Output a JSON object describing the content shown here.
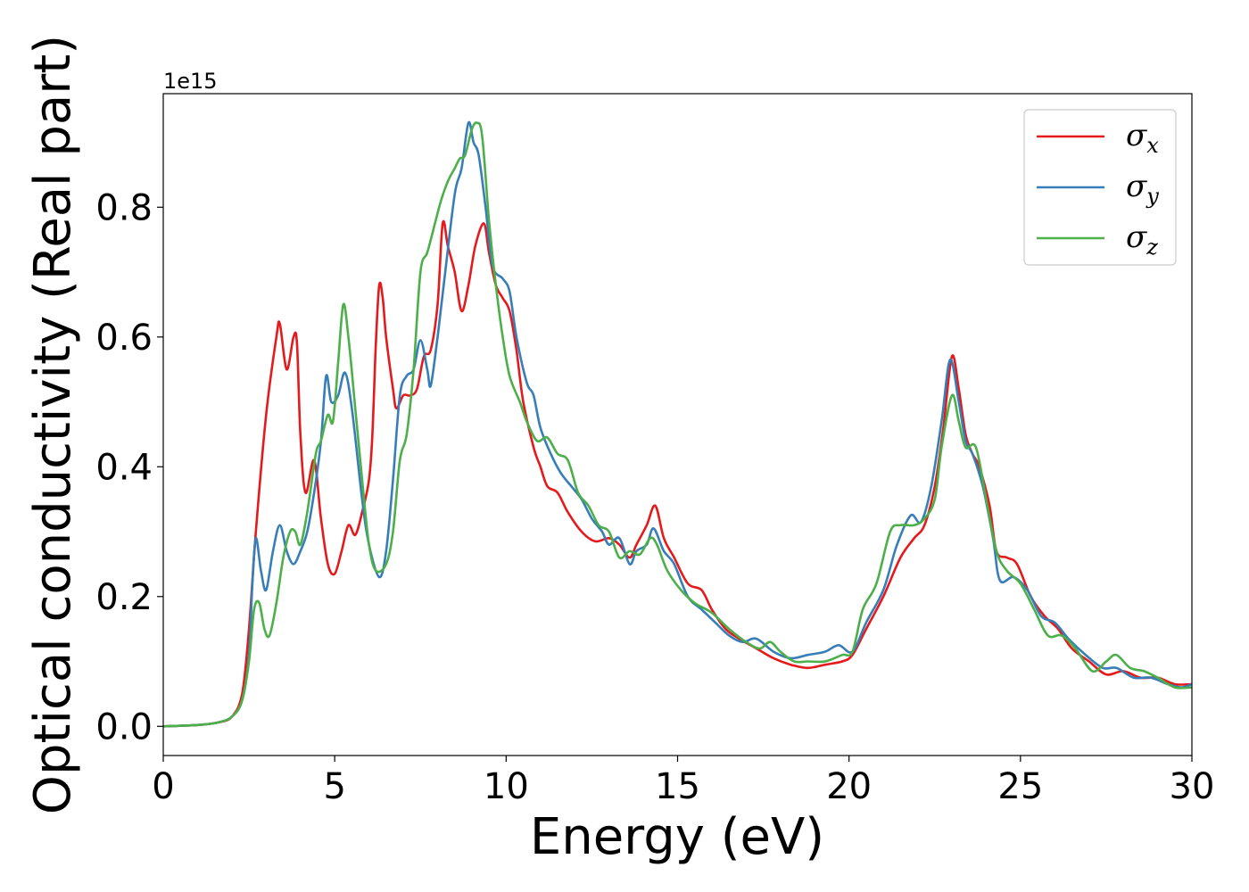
{
  "chart_data": {
    "type": "line",
    "xlabel": "Energy (eV)",
    "ylabel": "Optical conductivity (Real part)",
    "y_offset_text": "1e15",
    "xlim": [
      0,
      30
    ],
    "ylim": [
      -0.045,
      0.975
    ],
    "x_ticks": [
      0,
      5,
      10,
      15,
      20,
      25,
      30
    ],
    "x_tick_labels": [
      "0",
      "5",
      "10",
      "15",
      "20",
      "25",
      "30"
    ],
    "y_ticks": [
      0.0,
      0.2,
      0.4,
      0.6,
      0.8
    ],
    "y_tick_labels": [
      "0.0",
      "0.2",
      "0.4",
      "0.6",
      "0.8"
    ],
    "grid": false,
    "legend_position": "top-right",
    "series": [
      {
        "name": "σx",
        "symbol": "σ",
        "subscript": "x",
        "color": "#e41a1c",
        "points": [
          [
            0,
            0
          ],
          [
            1,
            0.002
          ],
          [
            1.6,
            0.006
          ],
          [
            2,
            0.015
          ],
          [
            2.3,
            0.05
          ],
          [
            2.5,
            0.15
          ],
          [
            2.7,
            0.3
          ],
          [
            3.0,
            0.48
          ],
          [
            3.3,
            0.6
          ],
          [
            3.4,
            0.62
          ],
          [
            3.6,
            0.55
          ],
          [
            3.8,
            0.6
          ],
          [
            3.9,
            0.59
          ],
          [
            4.0,
            0.45
          ],
          [
            4.15,
            0.36
          ],
          [
            4.4,
            0.41
          ],
          [
            4.6,
            0.32
          ],
          [
            4.8,
            0.25
          ],
          [
            5.0,
            0.235
          ],
          [
            5.2,
            0.27
          ],
          [
            5.4,
            0.31
          ],
          [
            5.6,
            0.295
          ],
          [
            5.8,
            0.33
          ],
          [
            6.0,
            0.38
          ],
          [
            6.1,
            0.45
          ],
          [
            6.2,
            0.59
          ],
          [
            6.3,
            0.68
          ],
          [
            6.4,
            0.66
          ],
          [
            6.5,
            0.6
          ],
          [
            6.7,
            0.52
          ],
          [
            6.8,
            0.49
          ],
          [
            7.0,
            0.51
          ],
          [
            7.2,
            0.51
          ],
          [
            7.4,
            0.52
          ],
          [
            7.6,
            0.57
          ],
          [
            7.8,
            0.58
          ],
          [
            8.0,
            0.65
          ],
          [
            8.15,
            0.775
          ],
          [
            8.3,
            0.74
          ],
          [
            8.5,
            0.7
          ],
          [
            8.7,
            0.64
          ],
          [
            8.9,
            0.68
          ],
          [
            9.1,
            0.74
          ],
          [
            9.35,
            0.775
          ],
          [
            9.5,
            0.73
          ],
          [
            9.7,
            0.68
          ],
          [
            9.9,
            0.66
          ],
          [
            10.1,
            0.64
          ],
          [
            10.3,
            0.58
          ],
          [
            10.5,
            0.5
          ],
          [
            10.8,
            0.43
          ],
          [
            11.0,
            0.4
          ],
          [
            11.2,
            0.37
          ],
          [
            11.5,
            0.36
          ],
          [
            11.8,
            0.33
          ],
          [
            12.2,
            0.3
          ],
          [
            12.6,
            0.285
          ],
          [
            13.0,
            0.29
          ],
          [
            13.3,
            0.28
          ],
          [
            13.6,
            0.26
          ],
          [
            13.8,
            0.28
          ],
          [
            14.1,
            0.31
          ],
          [
            14.35,
            0.34
          ],
          [
            14.6,
            0.29
          ],
          [
            14.9,
            0.26
          ],
          [
            15.3,
            0.22
          ],
          [
            15.7,
            0.21
          ],
          [
            16.0,
            0.18
          ],
          [
            16.4,
            0.15
          ],
          [
            16.8,
            0.135
          ],
          [
            17.3,
            0.12
          ],
          [
            17.8,
            0.105
          ],
          [
            18.3,
            0.095
          ],
          [
            18.8,
            0.09
          ],
          [
            19.3,
            0.095
          ],
          [
            19.8,
            0.1
          ],
          [
            20.1,
            0.11
          ],
          [
            20.5,
            0.15
          ],
          [
            21.0,
            0.2
          ],
          [
            21.5,
            0.26
          ],
          [
            21.9,
            0.29
          ],
          [
            22.2,
            0.31
          ],
          [
            22.5,
            0.37
          ],
          [
            22.75,
            0.46
          ],
          [
            23.0,
            0.57
          ],
          [
            23.2,
            0.52
          ],
          [
            23.4,
            0.45
          ],
          [
            23.6,
            0.42
          ],
          [
            23.8,
            0.4
          ],
          [
            24.1,
            0.34
          ],
          [
            24.3,
            0.27
          ],
          [
            24.6,
            0.26
          ],
          [
            24.9,
            0.25
          ],
          [
            25.3,
            0.2
          ],
          [
            25.7,
            0.17
          ],
          [
            26.1,
            0.15
          ],
          [
            26.5,
            0.12
          ],
          [
            27.0,
            0.1
          ],
          [
            27.5,
            0.08
          ],
          [
            28.0,
            0.085
          ],
          [
            28.5,
            0.075
          ],
          [
            29.0,
            0.075
          ],
          [
            29.5,
            0.065
          ],
          [
            30,
            0.065
          ]
        ]
      },
      {
        "name": "σy",
        "symbol": "σ",
        "subscript": "y",
        "color": "#377eb8",
        "points": [
          [
            0,
            0
          ],
          [
            1,
            0.002
          ],
          [
            1.6,
            0.006
          ],
          [
            2,
            0.015
          ],
          [
            2.3,
            0.04
          ],
          [
            2.5,
            0.11
          ],
          [
            2.6,
            0.22
          ],
          [
            2.7,
            0.29
          ],
          [
            2.85,
            0.24
          ],
          [
            3.0,
            0.21
          ],
          [
            3.2,
            0.27
          ],
          [
            3.4,
            0.31
          ],
          [
            3.6,
            0.27
          ],
          [
            3.8,
            0.25
          ],
          [
            4.0,
            0.27
          ],
          [
            4.2,
            0.3
          ],
          [
            4.4,
            0.36
          ],
          [
            4.6,
            0.44
          ],
          [
            4.75,
            0.54
          ],
          [
            4.9,
            0.5
          ],
          [
            5.1,
            0.51
          ],
          [
            5.3,
            0.545
          ],
          [
            5.5,
            0.49
          ],
          [
            5.8,
            0.35
          ],
          [
            6.0,
            0.28
          ],
          [
            6.3,
            0.23
          ],
          [
            6.5,
            0.27
          ],
          [
            6.7,
            0.38
          ],
          [
            6.9,
            0.51
          ],
          [
            7.1,
            0.54
          ],
          [
            7.3,
            0.55
          ],
          [
            7.5,
            0.595
          ],
          [
            7.7,
            0.55
          ],
          [
            7.8,
            0.525
          ],
          [
            8.0,
            0.6
          ],
          [
            8.2,
            0.69
          ],
          [
            8.5,
            0.82
          ],
          [
            8.7,
            0.86
          ],
          [
            8.9,
            0.93
          ],
          [
            9.05,
            0.9
          ],
          [
            9.2,
            0.88
          ],
          [
            9.4,
            0.8
          ],
          [
            9.6,
            0.71
          ],
          [
            9.9,
            0.69
          ],
          [
            10.1,
            0.67
          ],
          [
            10.3,
            0.6
          ],
          [
            10.6,
            0.53
          ],
          [
            10.8,
            0.51
          ],
          [
            11.0,
            0.46
          ],
          [
            11.3,
            0.42
          ],
          [
            11.6,
            0.39
          ],
          [
            11.9,
            0.37
          ],
          [
            12.2,
            0.35
          ],
          [
            12.5,
            0.32
          ],
          [
            12.8,
            0.3
          ],
          [
            13.0,
            0.28
          ],
          [
            13.3,
            0.29
          ],
          [
            13.6,
            0.25
          ],
          [
            13.8,
            0.27
          ],
          [
            14.1,
            0.28
          ],
          [
            14.3,
            0.305
          ],
          [
            14.6,
            0.27
          ],
          [
            14.9,
            0.25
          ],
          [
            15.3,
            0.2
          ],
          [
            15.7,
            0.18
          ],
          [
            16.1,
            0.16
          ],
          [
            16.5,
            0.14
          ],
          [
            16.9,
            0.13
          ],
          [
            17.3,
            0.135
          ],
          [
            17.8,
            0.115
          ],
          [
            18.3,
            0.105
          ],
          [
            18.8,
            0.11
          ],
          [
            19.3,
            0.115
          ],
          [
            19.7,
            0.125
          ],
          [
            20.1,
            0.115
          ],
          [
            20.5,
            0.16
          ],
          [
            21.0,
            0.21
          ],
          [
            21.4,
            0.28
          ],
          [
            21.8,
            0.325
          ],
          [
            22.1,
            0.315
          ],
          [
            22.4,
            0.37
          ],
          [
            22.7,
            0.47
          ],
          [
            22.95,
            0.565
          ],
          [
            23.2,
            0.5
          ],
          [
            23.4,
            0.44
          ],
          [
            23.6,
            0.42
          ],
          [
            23.9,
            0.37
          ],
          [
            24.2,
            0.29
          ],
          [
            24.4,
            0.225
          ],
          [
            24.8,
            0.23
          ],
          [
            25.2,
            0.21
          ],
          [
            25.6,
            0.17
          ],
          [
            26.0,
            0.16
          ],
          [
            26.4,
            0.135
          ],
          [
            26.9,
            0.11
          ],
          [
            27.4,
            0.09
          ],
          [
            27.8,
            0.09
          ],
          [
            28.3,
            0.075
          ],
          [
            28.8,
            0.075
          ],
          [
            29.3,
            0.065
          ],
          [
            29.7,
            0.06
          ],
          [
            30,
            0.065
          ]
        ]
      },
      {
        "name": "σz",
        "symbol": "σ",
        "subscript": "z",
        "color": "#4daf4a",
        "points": [
          [
            0,
            0
          ],
          [
            1,
            0.002
          ],
          [
            1.6,
            0.006
          ],
          [
            2,
            0.015
          ],
          [
            2.3,
            0.04
          ],
          [
            2.5,
            0.1
          ],
          [
            2.65,
            0.18
          ],
          [
            2.8,
            0.19
          ],
          [
            2.95,
            0.15
          ],
          [
            3.1,
            0.14
          ],
          [
            3.3,
            0.19
          ],
          [
            3.5,
            0.26
          ],
          [
            3.7,
            0.3
          ],
          [
            3.85,
            0.3
          ],
          [
            4.0,
            0.28
          ],
          [
            4.2,
            0.33
          ],
          [
            4.45,
            0.42
          ],
          [
            4.6,
            0.44
          ],
          [
            4.8,
            0.48
          ],
          [
            4.95,
            0.47
          ],
          [
            5.1,
            0.56
          ],
          [
            5.25,
            0.65
          ],
          [
            5.4,
            0.6
          ],
          [
            5.6,
            0.49
          ],
          [
            5.8,
            0.38
          ],
          [
            6.0,
            0.28
          ],
          [
            6.2,
            0.24
          ],
          [
            6.5,
            0.25
          ],
          [
            6.7,
            0.3
          ],
          [
            6.9,
            0.41
          ],
          [
            7.1,
            0.45
          ],
          [
            7.3,
            0.55
          ],
          [
            7.5,
            0.7
          ],
          [
            7.7,
            0.73
          ],
          [
            7.9,
            0.77
          ],
          [
            8.1,
            0.81
          ],
          [
            8.3,
            0.84
          ],
          [
            8.5,
            0.86
          ],
          [
            8.65,
            0.875
          ],
          [
            8.8,
            0.88
          ],
          [
            9.0,
            0.92
          ],
          [
            9.15,
            0.93
          ],
          [
            9.3,
            0.91
          ],
          [
            9.5,
            0.78
          ],
          [
            9.7,
            0.68
          ],
          [
            9.9,
            0.6
          ],
          [
            10.1,
            0.54
          ],
          [
            10.4,
            0.5
          ],
          [
            10.6,
            0.47
          ],
          [
            10.9,
            0.44
          ],
          [
            11.2,
            0.445
          ],
          [
            11.5,
            0.42
          ],
          [
            11.8,
            0.41
          ],
          [
            12.1,
            0.36
          ],
          [
            12.4,
            0.34
          ],
          [
            12.7,
            0.31
          ],
          [
            13.0,
            0.3
          ],
          [
            13.3,
            0.26
          ],
          [
            13.6,
            0.27
          ],
          [
            13.9,
            0.265
          ],
          [
            14.2,
            0.29
          ],
          [
            14.4,
            0.28
          ],
          [
            14.7,
            0.24
          ],
          [
            15.1,
            0.21
          ],
          [
            15.5,
            0.19
          ],
          [
            16.0,
            0.175
          ],
          [
            16.5,
            0.15
          ],
          [
            17.0,
            0.13
          ],
          [
            17.4,
            0.12
          ],
          [
            17.7,
            0.13
          ],
          [
            18.0,
            0.115
          ],
          [
            18.4,
            0.1
          ],
          [
            18.8,
            0.1
          ],
          [
            19.3,
            0.1
          ],
          [
            19.8,
            0.11
          ],
          [
            20.1,
            0.115
          ],
          [
            20.4,
            0.18
          ],
          [
            20.8,
            0.22
          ],
          [
            21.2,
            0.3
          ],
          [
            21.5,
            0.31
          ],
          [
            21.9,
            0.31
          ],
          [
            22.2,
            0.32
          ],
          [
            22.5,
            0.35
          ],
          [
            22.7,
            0.43
          ],
          [
            23.0,
            0.51
          ],
          [
            23.2,
            0.47
          ],
          [
            23.4,
            0.43
          ],
          [
            23.7,
            0.43
          ],
          [
            24.0,
            0.35
          ],
          [
            24.3,
            0.27
          ],
          [
            24.6,
            0.24
          ],
          [
            25.0,
            0.22
          ],
          [
            25.4,
            0.18
          ],
          [
            25.8,
            0.14
          ],
          [
            26.2,
            0.14
          ],
          [
            26.6,
            0.12
          ],
          [
            27.1,
            0.085
          ],
          [
            27.5,
            0.1
          ],
          [
            27.8,
            0.11
          ],
          [
            28.2,
            0.09
          ],
          [
            28.6,
            0.085
          ],
          [
            29.0,
            0.075
          ],
          [
            29.5,
            0.06
          ],
          [
            30,
            0.06
          ]
        ]
      }
    ]
  }
}
